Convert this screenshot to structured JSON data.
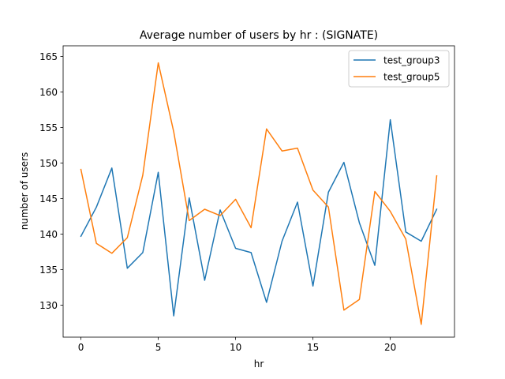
{
  "chart_data": {
    "type": "line",
    "title": "Average number of users by hr : (SIGNATE)",
    "xlabel": "hr",
    "ylabel": "number of users",
    "xlim": [
      -1.15,
      24.15
    ],
    "ylim": [
      125.5,
      166.5
    ],
    "xticks": [
      0,
      5,
      10,
      15,
      20
    ],
    "yticks": [
      130,
      135,
      140,
      145,
      150,
      155,
      160,
      165
    ],
    "grid": false,
    "legend_position": "upper-right",
    "x": [
      0,
      1,
      2,
      3,
      4,
      5,
      6,
      7,
      8,
      9,
      10,
      11,
      12,
      13,
      14,
      15,
      16,
      17,
      18,
      19,
      20,
      21,
      22,
      23
    ],
    "series": [
      {
        "name": "test_group3",
        "color": "#1f77b4",
        "values": [
          139.7,
          143.8,
          149.3,
          135.2,
          137.4,
          148.7,
          128.5,
          145.1,
          133.5,
          143.4,
          138.0,
          137.4,
          130.4,
          139.0,
          144.5,
          132.7,
          145.9,
          150.1,
          141.6,
          135.6,
          156.1,
          140.3,
          139.0,
          143.5
        ]
      },
      {
        "name": "test_group5",
        "color": "#ff7f0e",
        "values": [
          149.1,
          138.7,
          137.3,
          139.5,
          148.3,
          164.1,
          154.4,
          141.9,
          143.5,
          142.6,
          144.9,
          140.9,
          154.8,
          151.7,
          152.1,
          146.2,
          143.8,
          129.3,
          130.8,
          146.0,
          143.2,
          139.3,
          127.3,
          148.2
        ]
      }
    ]
  }
}
